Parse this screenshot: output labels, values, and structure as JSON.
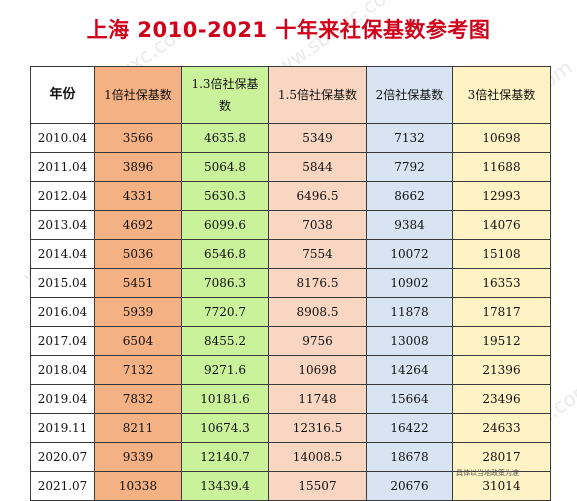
{
  "title": "上海 2010-2021 十年来社保基数参考图",
  "headers": [
    "年份",
    "1倍社保基数",
    "1.3倍社保基数",
    "1.5倍社保基数",
    "2倍社保基数",
    "3倍社保基数"
  ],
  "rows": [
    [
      "2010.04",
      "3566",
      "4635.8",
      "5349",
      "7132",
      "10698"
    ],
    [
      "2011.04",
      "3896",
      "5064.8",
      "5844",
      "7792",
      "11688"
    ],
    [
      "2012.04",
      "4331",
      "5630.3",
      "6496.5",
      "8662",
      "12993"
    ],
    [
      "2013.04",
      "4692",
      "6099.6",
      "7038",
      "9384",
      "14076"
    ],
    [
      "2014.04",
      "5036",
      "6546.8",
      "7554",
      "10072",
      "15108"
    ],
    [
      "2015.04",
      "5451",
      "7086.3",
      "8176.5",
      "10902",
      "16353"
    ],
    [
      "2016.04",
      "5939",
      "7720.7",
      "8908.5",
      "11878",
      "17817"
    ],
    [
      "2017.04",
      "6504",
      "8455.2",
      "9756",
      "13008",
      "19512"
    ],
    [
      "2018.04",
      "7132",
      "9271.6",
      "10698",
      "14264",
      "21396"
    ],
    [
      "2019.04",
      "7832",
      "10181.6",
      "11748",
      "15664",
      "23496"
    ],
    [
      "2019.11",
      "8211",
      "10674.3",
      "12316.5",
      "16422",
      "24633"
    ],
    [
      "2020.07",
      "9339",
      "12140.7",
      "14008.5",
      "18678",
      "28017"
    ],
    [
      "2021.07",
      "10338",
      "13439.4",
      "15507",
      "20676",
      "31014"
    ]
  ],
  "footnote": "具体以当地政策为准",
  "watermark": "www.sbwxc.com",
  "colors": {
    "title": "#d0021b",
    "col_1x": "#f4b183",
    "col_1_3x": "#c9f29b",
    "col_1_5x": "#f9d6c1",
    "col_2x": "#d8e4f2",
    "col_3x": "#fff2c4"
  }
}
